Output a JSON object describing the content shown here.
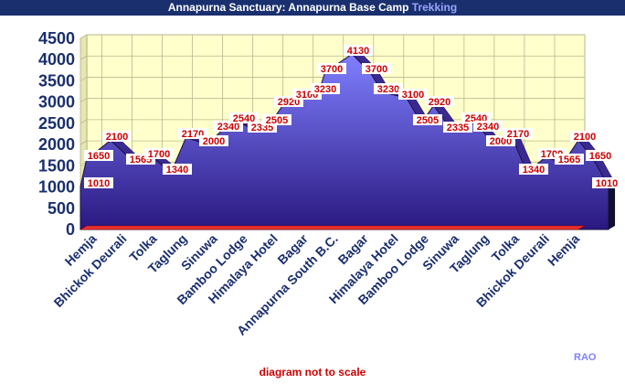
{
  "header": {
    "title": "Annapurna Sanctuary: Annapurna Base Camp",
    "title_accent": "Trekking"
  },
  "footer": {
    "note": "diagram not to scale",
    "credit": "RAO"
  },
  "chart_data": {
    "type": "area",
    "categories": [
      "Hemja",
      "Bhickok Deurali",
      "Tolka",
      "Taglung",
      "Sinuwa",
      "Bamboo Lodge",
      "Himalaya Hotel",
      "Bagar",
      "Annapurna South B.C.",
      "Bagar",
      "Himalaya Hotel",
      "Bamboo Lodge",
      "Sinuwa",
      "Taglung",
      "Tolka",
      "Bhickok Deurali",
      "Hemja"
    ],
    "points": [
      {
        "x": 0.0,
        "y": 1010
      },
      {
        "x": 0.2,
        "y": 1650
      },
      {
        "x": 1.0,
        "y": 2100
      },
      {
        "x": 1.8,
        "y": 1565
      },
      {
        "x": 2.4,
        "y": 1700
      },
      {
        "x": 3.0,
        "y": 1340
      },
      {
        "x": 3.5,
        "y": 2170
      },
      {
        "x": 4.2,
        "y": 2000
      },
      {
        "x": 4.7,
        "y": 2340
      },
      {
        "x": 5.2,
        "y": 2540
      },
      {
        "x": 5.8,
        "y": 2335
      },
      {
        "x": 6.3,
        "y": 2505
      },
      {
        "x": 6.7,
        "y": 2920
      },
      {
        "x": 7.3,
        "y": 3100
      },
      {
        "x": 7.9,
        "y": 3230
      },
      {
        "x": 8.1,
        "y": 3700
      },
      {
        "x": 9.0,
        "y": 4130
      },
      {
        "x": 9.6,
        "y": 3700
      },
      {
        "x": 10.0,
        "y": 3230
      },
      {
        "x": 10.8,
        "y": 3100
      },
      {
        "x": 11.3,
        "y": 2505
      },
      {
        "x": 11.7,
        "y": 2920
      },
      {
        "x": 12.3,
        "y": 2335
      },
      {
        "x": 12.9,
        "y": 2540
      },
      {
        "x": 13.3,
        "y": 2340
      },
      {
        "x": 13.7,
        "y": 2000
      },
      {
        "x": 14.3,
        "y": 2170
      },
      {
        "x": 14.8,
        "y": 1340
      },
      {
        "x": 15.4,
        "y": 1700
      },
      {
        "x": 16.0,
        "y": 1565
      },
      {
        "x": 16.5,
        "y": 2100
      },
      {
        "x": 17.0,
        "y": 1650
      },
      {
        "x": 17.5,
        "y": 1010
      }
    ],
    "ylim": [
      0,
      4500
    ],
    "yticks": [
      0,
      500,
      1000,
      1500,
      2000,
      2500,
      3000,
      3500,
      4000,
      4500
    ],
    "grid": true,
    "colors": {
      "plot_background": "#ffffcc",
      "gridline": "#b8b890",
      "area_fill_top": "#8080ff",
      "area_fill_bottom": "#2a1880",
      "area_outline": "#1a1040",
      "floor": "#ee3030",
      "data_label_text": "#cc0000",
      "data_label_background": "#ffffff",
      "axis_text": "#1a2f6e",
      "title_background": "#1a2f6e",
      "title_accent": "#9aa6ff"
    }
  }
}
